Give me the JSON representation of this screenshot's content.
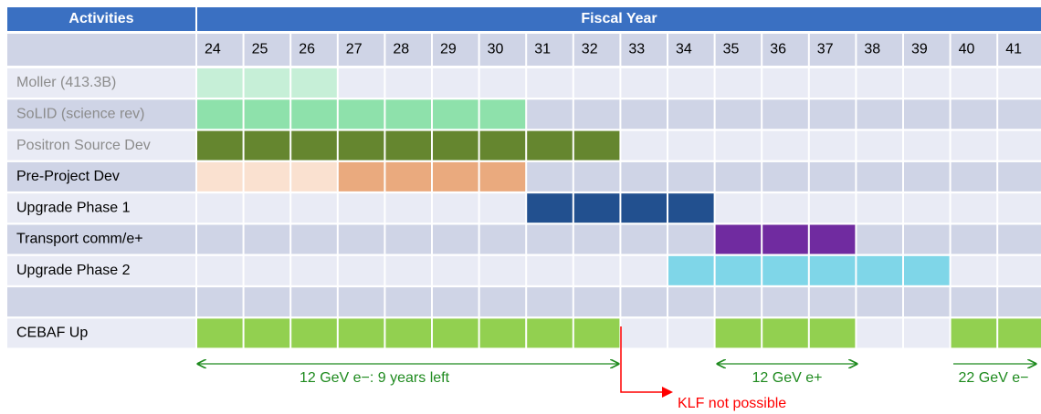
{
  "header": {
    "activities": "Activities",
    "fiscal_year": "Fiscal Year"
  },
  "years": [
    24,
    25,
    26,
    27,
    28,
    29,
    30,
    31,
    32,
    33,
    34,
    35,
    36,
    37,
    38,
    39,
    40,
    41
  ],
  "rows": [
    {
      "label": "Moller (413.3B)",
      "label_color": "#8c8c8c",
      "bars": [
        {
          "from": 24,
          "to": 26,
          "color": "#c6efd7"
        }
      ]
    },
    {
      "label": "SoLID (science rev)",
      "label_color": "#8c8c8c",
      "bars": [
        {
          "from": 24,
          "to": 30,
          "color": "#8ee1ab"
        }
      ]
    },
    {
      "label": "Positron Source Dev",
      "label_color": "#8c8c8c",
      "bars": [
        {
          "from": 24,
          "to": 32,
          "color": "#65862f"
        }
      ]
    },
    {
      "label": "Pre-Project Dev",
      "label_color": "#000000",
      "bars": [
        {
          "from": 24,
          "to": 26,
          "color": "#fae1d0"
        },
        {
          "from": 27,
          "to": 30,
          "color": "#eaaa7e"
        }
      ]
    },
    {
      "label": "Upgrade Phase 1",
      "label_color": "#000000",
      "bars": [
        {
          "from": 31,
          "to": 34,
          "color": "#22508f"
        }
      ]
    },
    {
      "label": "Transport comm/e+",
      "label_color": "#000000",
      "bars": [
        {
          "from": 35,
          "to": 37,
          "color": "#702ba0"
        }
      ]
    },
    {
      "label": "Upgrade Phase 2",
      "label_color": "#000000",
      "bars": [
        {
          "from": 34,
          "to": 39,
          "color": "#7fd6e8"
        }
      ]
    },
    {
      "label": null,
      "label_color": "#000000",
      "bars": []
    },
    {
      "label": "CEBAF Up",
      "label_color": "#000000",
      "bars": [
        {
          "from": 24,
          "to": 32,
          "color": "#92d050"
        },
        {
          "from": 35,
          "to": 37,
          "color": "#92d050"
        },
        {
          "from": 40,
          "to": 41,
          "color": "#92d050"
        }
      ]
    }
  ],
  "annotations": {
    "gev12_minus": "12 GeV e−: 9 years left",
    "gev12_plus": "12 GeV e+",
    "gev22_minus": "22 GeV e−",
    "klf": "KLF not possible"
  }
}
